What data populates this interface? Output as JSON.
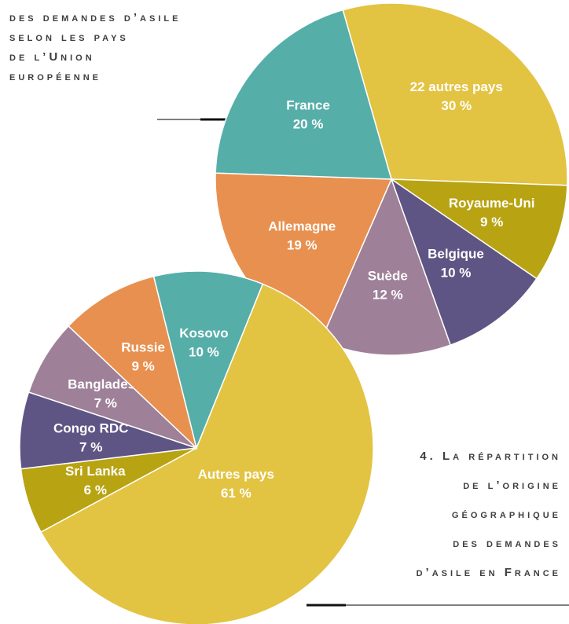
{
  "chart_data": [
    {
      "type": "pie",
      "title": [
        "des demandes d’asile",
        "selon les pays",
        "de l’Union",
        "européenne"
      ],
      "categories": [
        "22 autres pays",
        "Royaume-Uni",
        "Belgique",
        "Suède",
        "Allemagne",
        "France"
      ],
      "values": [
        30,
        9,
        10,
        12,
        19,
        20
      ],
      "value_labels": [
        "30 %",
        "9 %",
        "10 %",
        "12 %",
        "19 %",
        "20 %"
      ],
      "colors": [
        "#e3c342",
        "#b8a312",
        "#5f5584",
        "#9e8098",
        "#e8904f",
        "#56aea9"
      ]
    },
    {
      "type": "pie",
      "title": [
        "4. La répartition",
        "de l’origine",
        "géographique",
        "des demandes",
        "d’asile en France"
      ],
      "categories": [
        "Autres pays",
        "Sri Lanka",
        "Congo RDC",
        "Bangladesh",
        "Russie",
        "Kosovo"
      ],
      "values": [
        61,
        6,
        7,
        7,
        9,
        10
      ],
      "value_labels": [
        "61 %",
        "6 %",
        "7 %",
        "7 %",
        "9 %",
        "10 %"
      ],
      "colors": [
        "#e3c342",
        "#b8a312",
        "#5f5584",
        "#9e8098",
        "#e8904f",
        "#56aea9"
      ]
    }
  ]
}
